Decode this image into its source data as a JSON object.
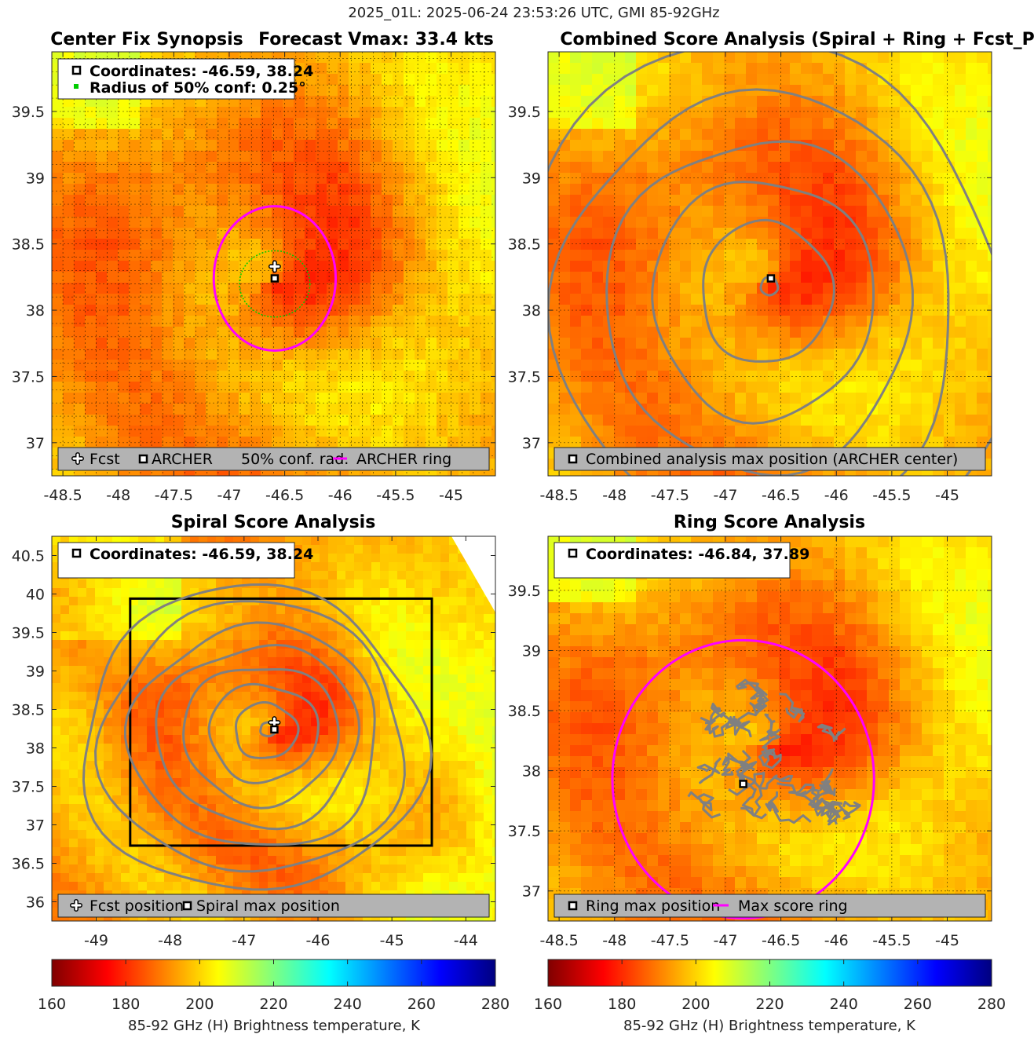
{
  "page": {
    "suptitle": "2025_01L: 2025-06-24 23:53:26 UTC, GMI 85-92GHz"
  },
  "panels": {
    "synopsis": {
      "title_left": "Center Fix Synopsis",
      "title_right": "Forecast Vmax: 33.4 kts",
      "info_line1": "Coordinates: -46.59, 38.24",
      "info_line2": "Radius of 50% conf: 0.25°",
      "legend": [
        "Fcst",
        "ARCHER",
        "50% conf. rad.",
        "ARCHER ring"
      ]
    },
    "combined": {
      "title": "Combined Score Analysis (Spiral + Ring + Fcst_Pe",
      "legend": [
        "Combined analysis max position (ARCHER center)"
      ]
    },
    "spiral": {
      "title": "Spiral Score Analysis",
      "info_line1": "Coordinates: -46.59, 38.24",
      "legend": [
        "Fcst position",
        "Spiral max position"
      ]
    },
    "ring": {
      "title": "Ring Score Analysis",
      "info_line1": "Coordinates: -46.84, 37.89",
      "legend": [
        "Ring max position",
        "Max score ring"
      ]
    }
  },
  "colorbar": {
    "label": "85-92 GHz (H) Brightness temperature, K",
    "ticks": [
      "160",
      "180",
      "200",
      "220",
      "240",
      "260",
      "280"
    ]
  },
  "colors": {
    "ring_magenta": "#ff00ff",
    "conf_green": "#00cc00",
    "contour_gray": "#808080",
    "legend_bg": "#b3b3b3"
  },
  "chart_data": [
    {
      "type": "heatmap",
      "name": "Center Fix Synopsis",
      "title": "Center Fix Synopsis     Forecast Vmax: 33.4 kts",
      "xlim": [
        -48.6,
        -44.6
      ],
      "ylim": [
        36.75,
        39.95
      ],
      "xticks": [
        -48.5,
        -48,
        -47.5,
        -47,
        -46.5,
        -46,
        -45.5,
        -45
      ],
      "xtick_labels": [
        "-48.5",
        "-48",
        "-47.5",
        "-47",
        "-46.5",
        "-46",
        "-45.5",
        "-45"
      ],
      "yticks": [
        37,
        37.5,
        38,
        38.5,
        39,
        39.5
      ],
      "ytick_labels": [
        "37",
        "37.5",
        "38",
        "38.5",
        "39",
        "39.5"
      ],
      "archer_center": [
        -46.59,
        38.24
      ],
      "forecast_position": [
        -46.59,
        38.33
      ],
      "conf_radius_deg": 0.25,
      "archer_ring_radius_deg": 0.55,
      "forecast_vmax_kts": 33.4,
      "colorbar_range_K": [
        160,
        280
      ]
    },
    {
      "type": "heatmap",
      "name": "Combined Score Analysis",
      "title": "Combined Score Analysis (Spiral + Ring + Fcst_Pe",
      "xlim": [
        -48.6,
        -44.6
      ],
      "ylim": [
        36.75,
        39.95
      ],
      "xticks": [
        -48.5,
        -48,
        -47.5,
        -47,
        -46.5,
        -46,
        -45.5,
        -45
      ],
      "xtick_labels": [
        "-48.5",
        "-48",
        "-47.5",
        "-47",
        "-46.5",
        "-46",
        "-45.5",
        "-45"
      ],
      "yticks": [
        37,
        37.5,
        38,
        38.5,
        39,
        39.5
      ],
      "ytick_labels": [
        "37",
        "37.5",
        "38",
        "38.5",
        "39",
        "39.5"
      ],
      "max_position": [
        -46.59,
        38.24
      ],
      "contour_radii_deg": [
        0.08,
        0.62,
        1.05,
        1.45,
        1.9,
        2.4
      ]
    },
    {
      "type": "heatmap",
      "name": "Spiral Score Analysis",
      "title": "Spiral Score Analysis",
      "xlim": [
        -49.6,
        -43.6
      ],
      "ylim": [
        35.75,
        40.75
      ],
      "xticks": [
        -49,
        -48,
        -47,
        -46,
        -45,
        -44
      ],
      "xtick_labels": [
        "-49",
        "-48",
        "-47",
        "-46",
        "-45",
        "-44"
      ],
      "yticks": [
        36,
        36.5,
        37,
        37.5,
        38,
        38.5,
        39,
        39.5,
        40,
        40.5
      ],
      "ytick_labels": [
        "36",
        "36.5",
        "37",
        "37.5",
        "38",
        "38.5",
        "39",
        "39.5",
        "40",
        "40.5"
      ],
      "forecast_position": [
        -46.59,
        38.33
      ],
      "spiral_max_position": [
        -46.59,
        38.24
      ],
      "search_box": {
        "lon": [
          -48.54,
          -44.46
        ],
        "lat": [
          36.73,
          39.94
        ]
      },
      "contour_radii_deg": [
        0.1,
        0.4,
        0.7,
        1.0,
        1.3,
        1.6,
        1.95,
        2.2
      ]
    },
    {
      "type": "heatmap",
      "name": "Ring Score Analysis",
      "title": "Ring Score Analysis",
      "xlim": [
        -48.6,
        -44.6
      ],
      "ylim": [
        36.75,
        39.95
      ],
      "xticks": [
        -48.5,
        -48,
        -47.5,
        -47,
        -46.5,
        -46,
        -45.5,
        -45
      ],
      "xtick_labels": [
        "-48.5",
        "-48",
        "-47.5",
        "-47",
        "-46.5",
        "-46",
        "-45.5",
        "-45"
      ],
      "yticks": [
        37,
        37.5,
        38,
        38.5,
        39,
        39.5
      ],
      "ytick_labels": [
        "37",
        "37.5",
        "38",
        "38.5",
        "39",
        "39.5"
      ],
      "ring_max_position": [
        -46.84,
        37.89
      ],
      "max_score_ring_radius_deg": 1.18
    }
  ]
}
